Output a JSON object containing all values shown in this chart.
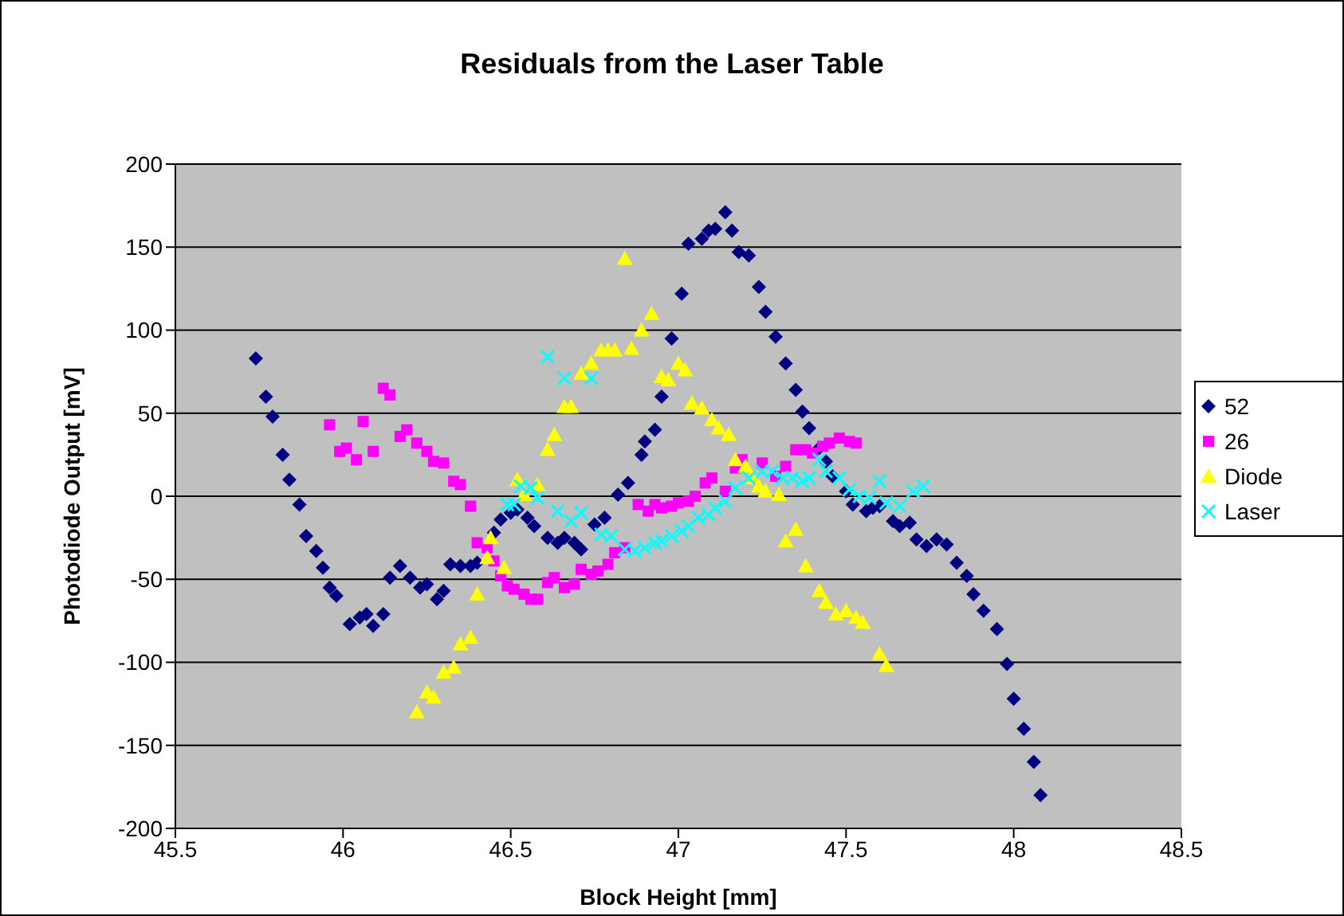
{
  "chart_data": {
    "type": "scatter",
    "title": "Residuals from the Laser Table",
    "xlabel": "Block Height [mm]",
    "ylabel": "Photodiode Output [mV]",
    "xlim": [
      45.5,
      48.5
    ],
    "xticks": [
      45.5,
      46,
      46.5,
      47,
      47.5,
      48,
      48.5
    ],
    "ylim": [
      -200,
      200
    ],
    "yticks": [
      -200,
      -150,
      -100,
      -50,
      0,
      50,
      100,
      150,
      200
    ],
    "grid": "y",
    "legend": "right",
    "series": [
      {
        "name": "52",
        "color": "#000080",
        "marker": "diamond",
        "x": [
          45.74,
          45.77,
          45.79,
          45.82,
          45.84,
          45.87,
          45.89,
          45.92,
          45.94,
          45.96,
          45.98,
          46.02,
          46.05,
          46.07,
          46.09,
          46.12,
          46.14,
          46.17,
          46.2,
          46.23,
          46.25,
          46.28,
          46.3,
          46.32,
          46.35,
          46.38,
          46.4,
          46.45,
          46.47,
          46.5,
          46.52,
          46.55,
          46.57,
          46.61,
          46.64,
          46.66,
          46.69,
          46.71,
          46.75,
          46.78,
          46.82,
          46.85,
          46.89,
          46.9,
          46.93,
          46.95,
          46.98,
          47.01,
          47.03,
          47.07,
          47.09,
          47.11,
          47.14,
          47.16,
          47.18,
          47.21,
          47.24,
          47.26,
          47.29,
          47.32,
          47.35,
          47.37,
          47.39,
          47.42,
          47.44,
          47.46,
          47.5,
          47.52,
          47.56,
          47.58,
          47.6,
          47.64,
          47.66,
          47.69,
          47.71,
          47.74,
          47.77,
          47.8,
          47.83,
          47.86,
          47.88,
          47.91,
          47.95,
          47.98,
          48.0,
          48.03,
          48.06,
          48.08
        ],
        "values": [
          83,
          60,
          48,
          25,
          10,
          -5,
          -24,
          -33,
          -43,
          -55,
          -60,
          -77,
          -73,
          -71,
          -78,
          -71,
          -49,
          -42,
          -49,
          -55,
          -53,
          -62,
          -57,
          -41,
          -42,
          -42,
          -40,
          -22,
          -14,
          -10,
          -8,
          -13,
          -18,
          -25,
          -28,
          -25,
          -28,
          -32,
          -17,
          -13,
          1,
          8,
          25,
          33,
          40,
          60,
          95,
          122,
          152,
          155,
          160,
          161,
          171,
          160,
          147,
          145,
          126,
          111,
          96,
          80,
          64,
          51,
          41,
          29,
          21,
          12,
          3,
          -5,
          -9,
          -7,
          -6,
          -15,
          -18,
          -16,
          -26,
          -30,
          -26,
          -29,
          -40,
          -48,
          -59,
          -69,
          -80,
          -101,
          -122,
          -140,
          -160,
          -180
        ]
      },
      {
        "name": "26",
        "color": "#ff00ff",
        "marker": "square",
        "x": [
          45.96,
          45.99,
          46.01,
          46.04,
          46.06,
          46.09,
          46.12,
          46.14,
          46.17,
          46.19,
          46.22,
          46.25,
          46.27,
          46.3,
          46.33,
          46.35,
          46.38,
          46.4,
          46.43,
          46.45,
          46.47,
          46.49,
          46.51,
          46.54,
          46.56,
          46.58,
          46.61,
          46.63,
          46.66,
          46.69,
          46.71,
          46.74,
          46.76,
          46.79,
          46.81,
          46.84,
          46.88,
          46.91,
          46.93,
          46.95,
          46.98,
          47.0,
          47.03,
          47.05,
          47.08,
          47.1,
          47.14,
          47.17,
          47.19,
          47.25,
          47.29,
          47.32,
          47.35,
          47.38,
          47.4,
          47.43,
          47.45,
          47.48,
          47.51,
          47.53
        ],
        "values": [
          43,
          27,
          29,
          22,
          45,
          27,
          65,
          61,
          36,
          40,
          32,
          27,
          21,
          20,
          9,
          7,
          -6,
          -28,
          -31,
          -39,
          -48,
          -54,
          -56,
          -59,
          -62,
          -62,
          -52,
          -49,
          -55,
          -53,
          -44,
          -47,
          -45,
          -41,
          -34,
          -31,
          -5,
          -9,
          -5,
          -7,
          -6,
          -4,
          -3,
          0,
          8,
          11,
          3,
          17,
          22,
          20,
          12,
          18,
          28,
          28,
          26,
          30,
          32,
          35,
          33,
          32
        ]
      },
      {
        "name": "Diode",
        "color": "#ffff00",
        "marker": "triangle",
        "x": [
          46.22,
          46.25,
          46.27,
          46.3,
          46.33,
          46.35,
          46.38,
          46.4,
          46.43,
          46.44,
          46.48,
          46.52,
          46.54,
          46.58,
          46.61,
          46.63,
          46.66,
          46.68,
          46.71,
          46.74,
          46.77,
          46.79,
          46.81,
          46.84,
          46.86,
          46.89,
          46.92,
          46.95,
          46.97,
          47.0,
          47.02,
          47.04,
          47.07,
          47.1,
          47.12,
          47.15,
          47.17,
          47.2,
          47.22,
          47.24,
          47.26,
          47.3,
          47.32,
          47.35,
          47.38,
          47.42,
          47.44,
          47.47,
          47.5,
          47.53,
          47.55,
          47.6,
          47.62
        ],
        "values": [
          -130,
          -118,
          -121,
          -106,
          -103,
          -89,
          -85,
          -59,
          -37,
          -25,
          -43,
          10,
          1,
          7,
          28,
          37,
          54,
          54,
          74,
          80,
          88,
          88,
          88,
          143,
          89,
          100,
          110,
          72,
          70,
          80,
          76,
          56,
          53,
          46,
          41,
          37,
          22,
          18,
          11,
          6,
          3,
          1,
          -27,
          -20,
          -42,
          -57,
          -64,
          -71,
          -69,
          -73,
          -76,
          -95,
          -102
        ]
      },
      {
        "name": "Laser",
        "color": "#00ffff",
        "marker": "cross",
        "x": [
          46.49,
          46.51,
          46.53,
          46.56,
          46.58,
          46.61,
          46.64,
          46.66,
          46.68,
          46.71,
          46.74,
          46.77,
          46.8,
          46.84,
          46.87,
          46.9,
          46.93,
          46.95,
          46.98,
          47.01,
          47.03,
          47.06,
          47.09,
          47.11,
          47.14,
          47.17,
          47.21,
          47.25,
          47.28,
          47.31,
          47.34,
          47.37,
          47.39,
          47.42,
          47.44,
          47.48,
          47.51,
          47.54,
          47.57,
          47.6,
          47.62,
          47.66,
          47.7,
          47.73
        ],
        "values": [
          -5,
          -5,
          6,
          5,
          -1,
          84,
          -9,
          71,
          -15,
          -10,
          71,
          -23,
          -24,
          -32,
          -33,
          -31,
          -28,
          -27,
          -24,
          -21,
          -18,
          -13,
          -11,
          -7,
          -3,
          5,
          11,
          15,
          15,
          11,
          11,
          9,
          11,
          22,
          15,
          11,
          4,
          0,
          -1,
          9,
          -4,
          -6,
          3,
          6
        ]
      }
    ]
  }
}
